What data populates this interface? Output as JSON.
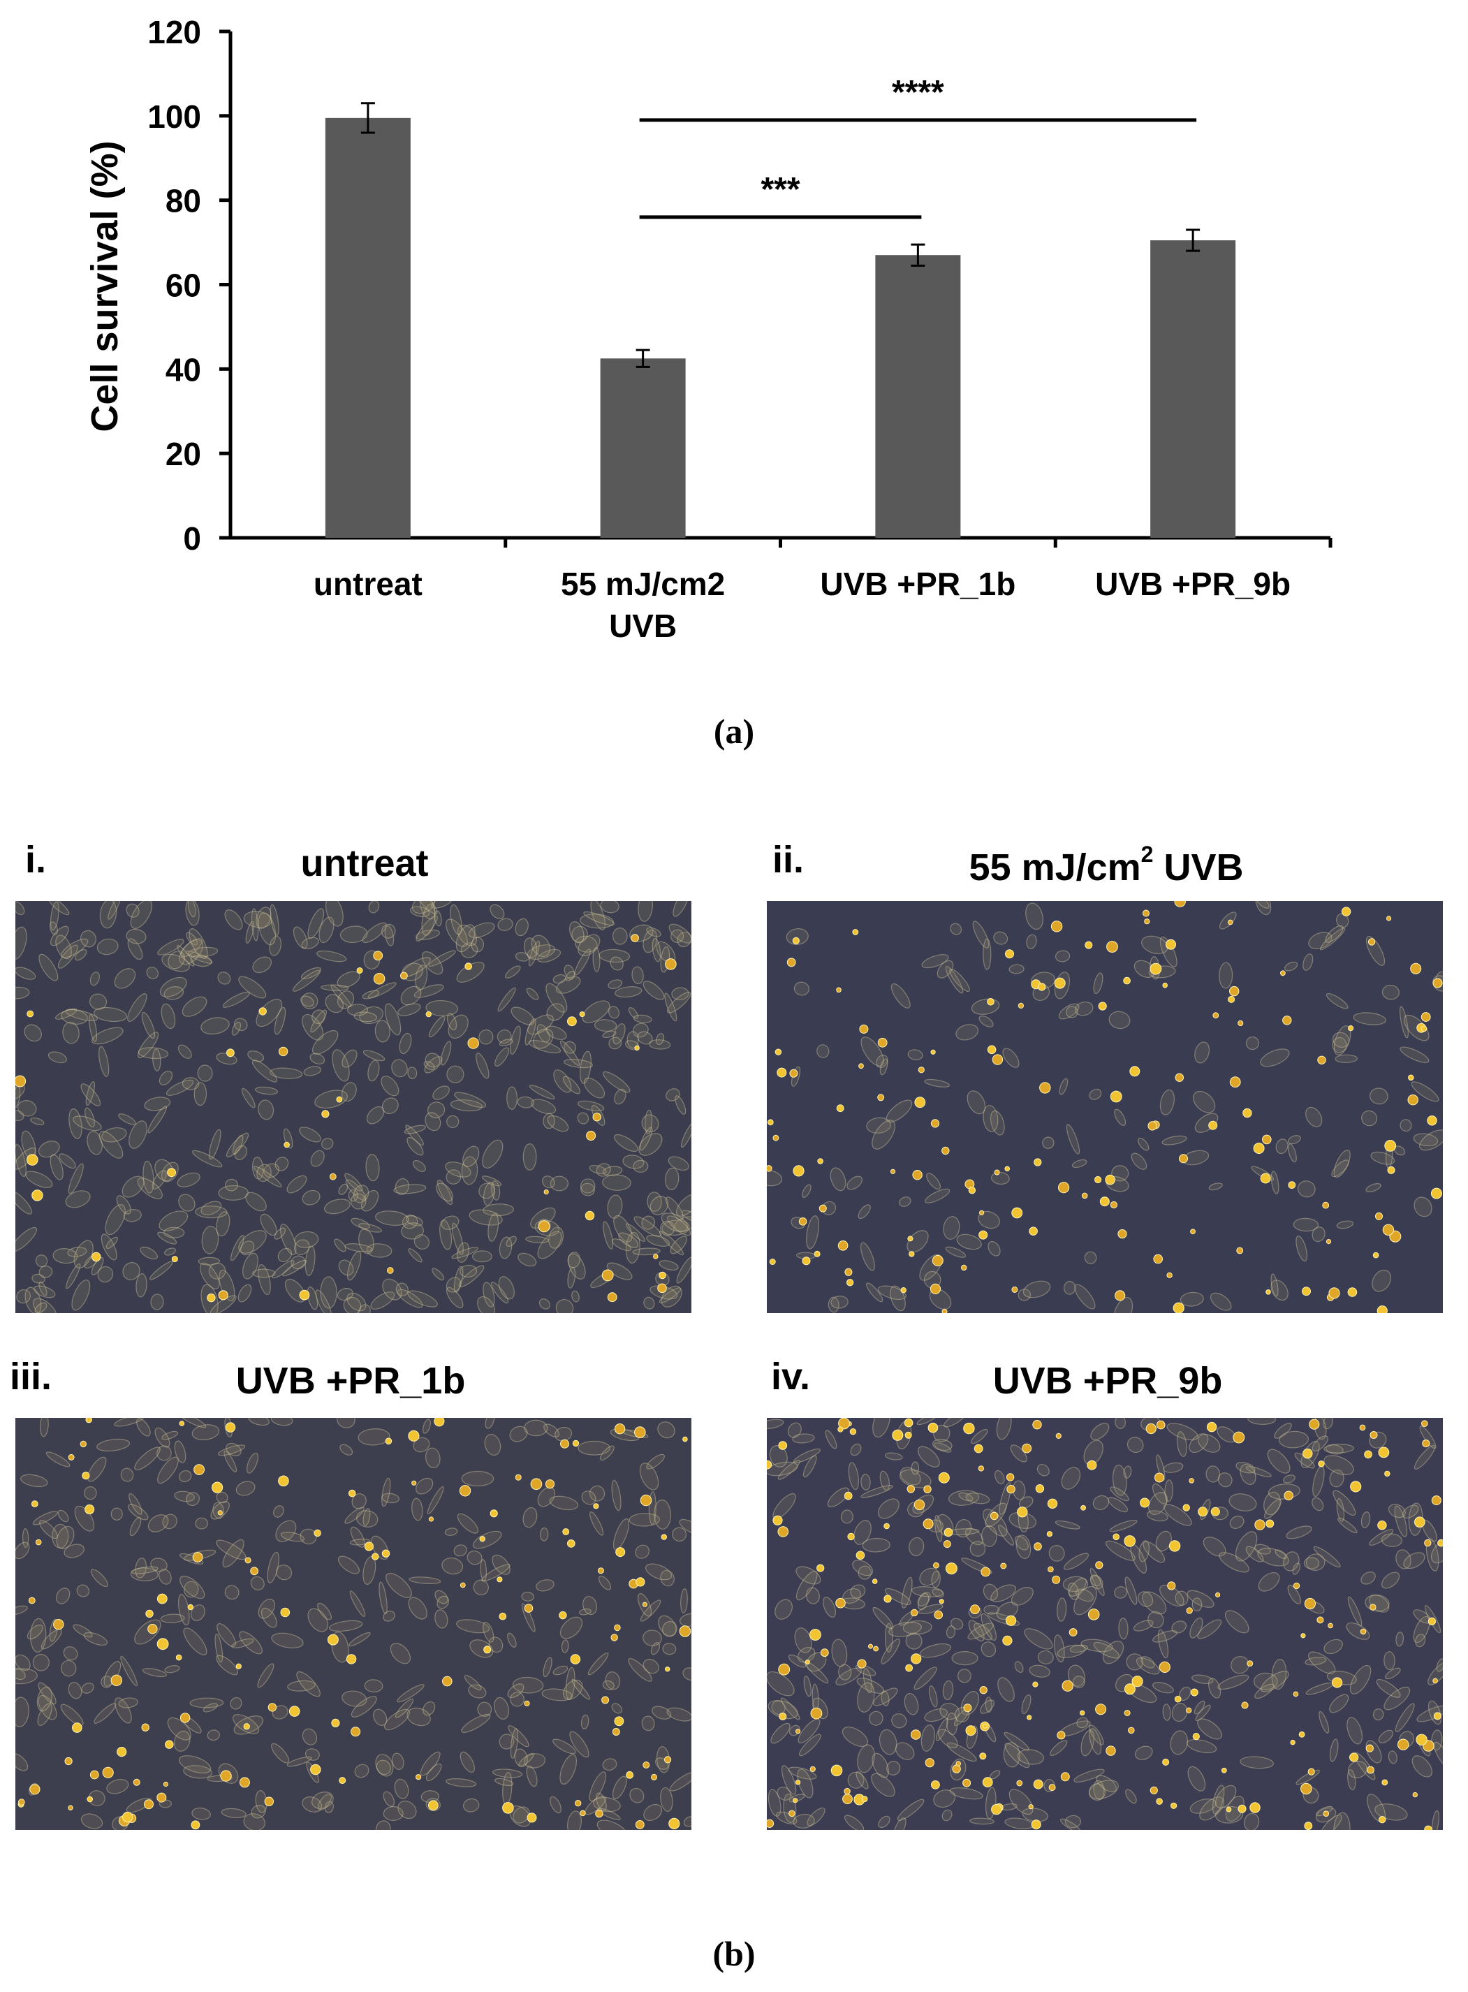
{
  "chart_data": {
    "type": "bar",
    "title": "",
    "ylabel": "Cell survival (%)",
    "xlabel": "",
    "ylim": [
      0,
      120
    ],
    "yticks": [
      "0",
      "20",
      "40",
      "60",
      "80",
      "100",
      "120"
    ],
    "grid": false,
    "bar_color": "#595959",
    "categories": [
      {
        "line1": "untreat",
        "line2": ""
      },
      {
        "line1": "55 mJ/cm2",
        "line2": "UVB"
      },
      {
        "line1": "UVB +PR_1b",
        "line2": ""
      },
      {
        "line1": "UVB +PR_9b",
        "line2": ""
      }
    ],
    "values": [
      99.5,
      42.5,
      67,
      70.5
    ],
    "errors": [
      3.5,
      2,
      2.5,
      2.5
    ],
    "significance": [
      {
        "from": 1,
        "to": 2,
        "y": 76,
        "label": "***"
      },
      {
        "from": 1,
        "to": 3,
        "y": 99,
        "label": "****"
      }
    ]
  },
  "panel_a_label": "(a)",
  "panel_b_label": "(b)",
  "micrographs": [
    {
      "numeral": "i.",
      "title": "untreat",
      "density": "high"
    },
    {
      "numeral": "ii.",
      "title_main": "55 mJ/cm",
      "title_sup": "2",
      "title_tail": " UVB",
      "density": "low"
    },
    {
      "numeral": "iii.",
      "title": "UVB +PR_1b",
      "density": "medium"
    },
    {
      "numeral": "iv.",
      "title": "UVB +PR_9b",
      "density": "medium-high"
    }
  ]
}
